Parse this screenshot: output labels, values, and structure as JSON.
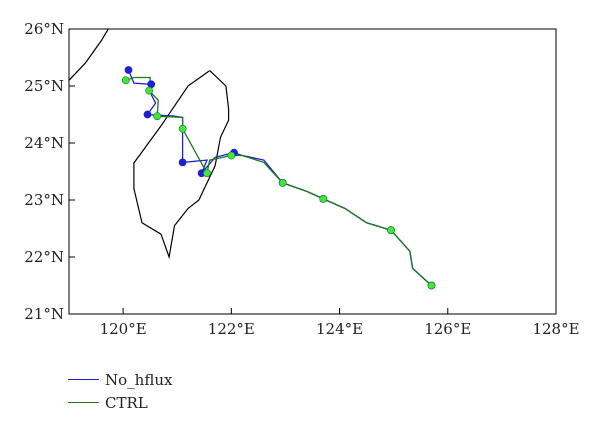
{
  "chart_data": {
    "type": "line",
    "xlim": [
      119,
      128
    ],
    "ylim": [
      21,
      26
    ],
    "x_ticks": [
      {
        "value": 120,
        "label": "120°E"
      },
      {
        "value": 122,
        "label": "122°E"
      },
      {
        "value": 124,
        "label": "124°E"
      },
      {
        "value": 126,
        "label": "126°E"
      },
      {
        "value": 128,
        "label": "128°E"
      }
    ],
    "y_ticks": [
      {
        "value": 21,
        "label": "21°N"
      },
      {
        "value": 22,
        "label": "22°N"
      },
      {
        "value": 23,
        "label": "23°N"
      },
      {
        "value": 24,
        "label": "24°N"
      },
      {
        "value": 25,
        "label": "25°N"
      },
      {
        "value": 26,
        "label": "26°N"
      }
    ],
    "grid": false,
    "legend_position": "below-left",
    "coastlines": [
      {
        "name": "Taiwan",
        "points": [
          [
            121.6,
            25.27
          ],
          [
            121.2,
            25.0
          ],
          [
            120.7,
            24.3
          ],
          [
            120.2,
            23.65
          ],
          [
            120.2,
            23.2
          ],
          [
            120.35,
            22.6
          ],
          [
            120.7,
            22.4
          ],
          [
            120.85,
            22.0
          ],
          [
            120.95,
            22.55
          ],
          [
            121.2,
            22.85
          ],
          [
            121.4,
            23.0
          ],
          [
            121.7,
            23.6
          ],
          [
            121.8,
            24.1
          ],
          [
            121.95,
            24.4
          ],
          [
            121.95,
            24.6
          ],
          [
            121.9,
            25.0
          ],
          [
            121.6,
            25.27
          ]
        ]
      },
      {
        "name": "Mainland coast",
        "points": [
          [
            119.0,
            25.1
          ],
          [
            119.3,
            25.4
          ],
          [
            119.6,
            25.8
          ],
          [
            119.85,
            26.2
          ]
        ]
      }
    ],
    "series": [
      {
        "name": "No_hflux",
        "color": "#1f1fd6",
        "marker_color": "#1f1fd6",
        "track": [
          [
            120.1,
            25.28
          ],
          [
            120.2,
            25.05
          ],
          [
            120.52,
            25.03
          ],
          [
            120.52,
            24.85
          ],
          [
            120.6,
            24.7
          ],
          [
            120.45,
            24.5
          ],
          [
            120.95,
            24.47
          ],
          [
            121.1,
            24.45
          ],
          [
            121.1,
            23.66
          ],
          [
            121.55,
            23.7
          ],
          [
            121.45,
            23.47
          ],
          [
            121.7,
            23.75
          ],
          [
            122.05,
            23.83
          ],
          [
            122.2,
            23.78
          ],
          [
            122.6,
            23.7
          ],
          [
            122.95,
            23.3
          ],
          [
            123.4,
            23.15
          ],
          [
            123.7,
            23.02
          ],
          [
            124.1,
            22.85
          ],
          [
            124.5,
            22.6
          ],
          [
            124.95,
            22.47
          ],
          [
            125.3,
            22.1
          ],
          [
            125.35,
            21.8
          ],
          [
            125.7,
            21.5
          ]
        ],
        "markers": [
          [
            120.1,
            25.28
          ],
          [
            120.52,
            25.03
          ],
          [
            120.45,
            24.5
          ],
          [
            121.1,
            23.66
          ],
          [
            121.45,
            23.47
          ],
          [
            122.05,
            23.83
          ],
          [
            122.95,
            23.3
          ],
          [
            123.7,
            23.02
          ],
          [
            124.95,
            22.47
          ],
          [
            125.7,
            21.5
          ]
        ]
      },
      {
        "name": "CTRL",
        "color": "#1a7a1a",
        "marker_color": "#3ee63e",
        "track": [
          [
            120.05,
            25.1
          ],
          [
            120.2,
            25.15
          ],
          [
            120.5,
            25.15
          ],
          [
            120.48,
            24.92
          ],
          [
            120.65,
            24.75
          ],
          [
            120.63,
            24.47
          ],
          [
            121.1,
            24.45
          ],
          [
            121.1,
            24.25
          ],
          [
            121.3,
            23.9
          ],
          [
            121.55,
            23.47
          ],
          [
            121.6,
            23.7
          ],
          [
            122.0,
            23.78
          ],
          [
            122.2,
            23.78
          ],
          [
            122.6,
            23.66
          ],
          [
            122.95,
            23.3
          ],
          [
            123.4,
            23.15
          ],
          [
            123.7,
            23.02
          ],
          [
            124.1,
            22.85
          ],
          [
            124.5,
            22.6
          ],
          [
            124.95,
            22.47
          ],
          [
            125.3,
            22.1
          ],
          [
            125.35,
            21.8
          ],
          [
            125.7,
            21.5
          ]
        ],
        "markers": [
          [
            120.05,
            25.1
          ],
          [
            120.48,
            24.92
          ],
          [
            120.63,
            24.47
          ],
          [
            121.1,
            24.25
          ],
          [
            121.55,
            23.47
          ],
          [
            122.0,
            23.78
          ],
          [
            122.95,
            23.3
          ],
          [
            123.7,
            23.02
          ],
          [
            124.95,
            22.47
          ],
          [
            125.7,
            21.5
          ]
        ]
      }
    ]
  },
  "legend": {
    "items": [
      {
        "label": "No_hflux",
        "color": "#1f1fd6"
      },
      {
        "label": "CTRL",
        "color": "#1a7a1a"
      }
    ]
  }
}
